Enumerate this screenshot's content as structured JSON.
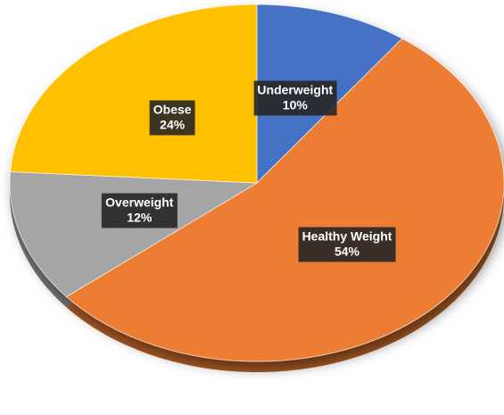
{
  "chart_data": {
    "type": "pie",
    "title": "",
    "start_angle_deg": 0,
    "direction": "clockwise",
    "legend": "none",
    "slices": [
      {
        "label": "Underweight",
        "value": 10,
        "value_label": "10%",
        "color": "#4472C4"
      },
      {
        "label": "Healthy Weight",
        "value": 54,
        "value_label": "54%",
        "color": "#ED7D31"
      },
      {
        "label": "Overweight",
        "value": 12,
        "value_label": "12%",
        "color": "#A5A5A5"
      },
      {
        "label": "Obese",
        "value": 24,
        "value_label": "24%",
        "color": "#FFC000"
      }
    ]
  }
}
